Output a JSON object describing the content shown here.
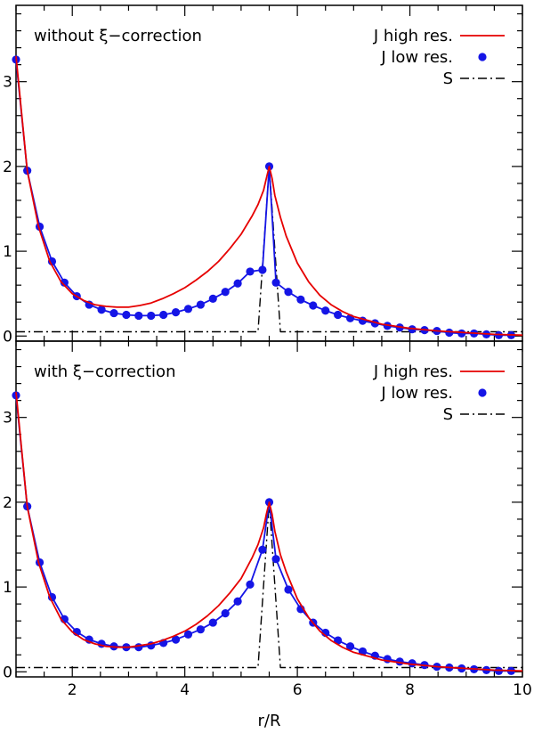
{
  "colors": {
    "high_res": "#e60000",
    "low_res": "#1515e6",
    "source": "#000000",
    "frame": "#000000"
  },
  "chart_data": [
    {
      "type": "line",
      "title": "without ξ−correction",
      "xlabel": "r/R",
      "ylabel": "",
      "xlim": [
        1.0,
        10.0
      ],
      "ylim": [
        -0.06,
        3.9
      ],
      "x_ticks": [
        2,
        4,
        6,
        8,
        10
      ],
      "y_ticks": [
        0,
        1,
        2,
        3
      ],
      "legend": [
        "J high res.",
        "J low res.",
        "S"
      ],
      "legend_position": "top-right",
      "series": [
        {
          "name": "J high res.",
          "style": "solid",
          "x": [
            1.0,
            1.2,
            1.4,
            1.6,
            1.8,
            2.0,
            2.2,
            2.4,
            2.6,
            2.8,
            3.0,
            3.2,
            3.4,
            3.6,
            3.8,
            4.0,
            4.2,
            4.4,
            4.6,
            4.8,
            5.0,
            5.2,
            5.3,
            5.4,
            5.45,
            5.5,
            5.55,
            5.6,
            5.7,
            5.8,
            6.0,
            6.2,
            6.4,
            6.6,
            6.8,
            7.0,
            7.5,
            8.0,
            8.5,
            9.0,
            9.5,
            10.0
          ],
          "y": [
            3.3,
            1.95,
            1.29,
            0.88,
            0.64,
            0.5,
            0.42,
            0.37,
            0.35,
            0.34,
            0.34,
            0.36,
            0.39,
            0.44,
            0.5,
            0.57,
            0.66,
            0.76,
            0.88,
            1.03,
            1.2,
            1.42,
            1.55,
            1.72,
            1.86,
            2.0,
            1.86,
            1.66,
            1.4,
            1.18,
            0.86,
            0.64,
            0.48,
            0.37,
            0.29,
            0.23,
            0.14,
            0.09,
            0.06,
            0.04,
            0.02,
            0.01
          ]
        },
        {
          "name": "J low res.",
          "style": "solid-markers",
          "x": [
            1.0,
            1.2,
            1.42,
            1.64,
            1.86,
            2.08,
            2.3,
            2.52,
            2.74,
            2.96,
            3.18,
            3.4,
            3.62,
            3.84,
            4.06,
            4.28,
            4.5,
            4.72,
            4.94,
            5.16,
            5.38,
            5.5,
            5.62,
            5.84,
            6.06,
            6.28,
            6.5,
            6.72,
            6.94,
            7.16,
            7.38,
            7.6,
            7.82,
            8.04,
            8.26,
            8.48,
            8.7,
            8.92,
            9.14,
            9.36,
            9.58,
            9.8
          ],
          "y": [
            3.26,
            1.95,
            1.29,
            0.88,
            0.63,
            0.47,
            0.37,
            0.31,
            0.27,
            0.25,
            0.24,
            0.24,
            0.25,
            0.28,
            0.32,
            0.37,
            0.44,
            0.52,
            0.62,
            0.76,
            0.78,
            2.0,
            0.63,
            0.52,
            0.43,
            0.36,
            0.3,
            0.25,
            0.21,
            0.18,
            0.15,
            0.12,
            0.1,
            0.08,
            0.07,
            0.06,
            0.04,
            0.03,
            0.03,
            0.02,
            0.01,
            0.01
          ]
        },
        {
          "name": "S",
          "style": "dash-dot",
          "x": [
            1.0,
            5.3,
            5.5,
            5.7,
            10.0
          ],
          "y": [
            0.05,
            0.05,
            2.0,
            0.05,
            0.05
          ]
        }
      ]
    },
    {
      "type": "line",
      "title": "with ξ−correction",
      "xlabel": "r/R",
      "ylabel": "",
      "xlim": [
        1.0,
        10.0
      ],
      "ylim": [
        -0.06,
        3.9
      ],
      "x_ticks": [
        2,
        4,
        6,
        8,
        10
      ],
      "y_ticks": [
        0,
        1,
        2,
        3
      ],
      "legend": [
        "J high res.",
        "J low res.",
        "S"
      ],
      "legend_position": "top-right",
      "series": [
        {
          "name": "J high res.",
          "style": "solid",
          "x": [
            1.0,
            1.2,
            1.4,
            1.6,
            1.8,
            2.0,
            2.2,
            2.4,
            2.6,
            2.8,
            3.0,
            3.2,
            3.4,
            3.6,
            3.8,
            4.0,
            4.2,
            4.4,
            4.6,
            4.8,
            5.0,
            5.2,
            5.3,
            5.4,
            5.45,
            5.5,
            5.55,
            5.6,
            5.7,
            5.8,
            6.0,
            6.2,
            6.4,
            6.6,
            6.8,
            7.0,
            7.5,
            8.0,
            8.5,
            9.0,
            9.5,
            10.0
          ],
          "y": [
            3.3,
            1.95,
            1.29,
            0.88,
            0.62,
            0.47,
            0.38,
            0.33,
            0.3,
            0.29,
            0.29,
            0.31,
            0.33,
            0.37,
            0.42,
            0.48,
            0.56,
            0.66,
            0.78,
            0.93,
            1.1,
            1.35,
            1.5,
            1.7,
            1.86,
            2.0,
            1.86,
            1.66,
            1.38,
            1.18,
            0.86,
            0.64,
            0.48,
            0.37,
            0.29,
            0.23,
            0.14,
            0.09,
            0.06,
            0.04,
            0.02,
            0.01
          ]
        },
        {
          "name": "J low res.",
          "style": "solid-markers",
          "x": [
            1.0,
            1.2,
            1.42,
            1.64,
            1.86,
            2.08,
            2.3,
            2.52,
            2.74,
            2.96,
            3.18,
            3.4,
            3.62,
            3.84,
            4.06,
            4.28,
            4.5,
            4.72,
            4.94,
            5.16,
            5.38,
            5.5,
            5.62,
            5.84,
            6.06,
            6.28,
            6.5,
            6.72,
            6.94,
            7.16,
            7.38,
            7.6,
            7.82,
            8.04,
            8.26,
            8.48,
            8.7,
            8.92,
            9.14,
            9.36,
            9.58,
            9.8
          ],
          "y": [
            3.26,
            1.95,
            1.29,
            0.88,
            0.62,
            0.47,
            0.38,
            0.33,
            0.3,
            0.29,
            0.29,
            0.31,
            0.34,
            0.38,
            0.44,
            0.5,
            0.58,
            0.69,
            0.83,
            1.03,
            1.44,
            2.0,
            1.33,
            0.97,
            0.74,
            0.58,
            0.46,
            0.37,
            0.3,
            0.24,
            0.19,
            0.15,
            0.12,
            0.1,
            0.08,
            0.06,
            0.05,
            0.04,
            0.03,
            0.02,
            0.01,
            0.01
          ]
        },
        {
          "name": "S",
          "style": "dash-dot",
          "x": [
            1.0,
            5.3,
            5.5,
            5.7,
            10.0
          ],
          "y": [
            0.05,
            0.05,
            2.0,
            0.05,
            0.05
          ]
        }
      ]
    }
  ]
}
